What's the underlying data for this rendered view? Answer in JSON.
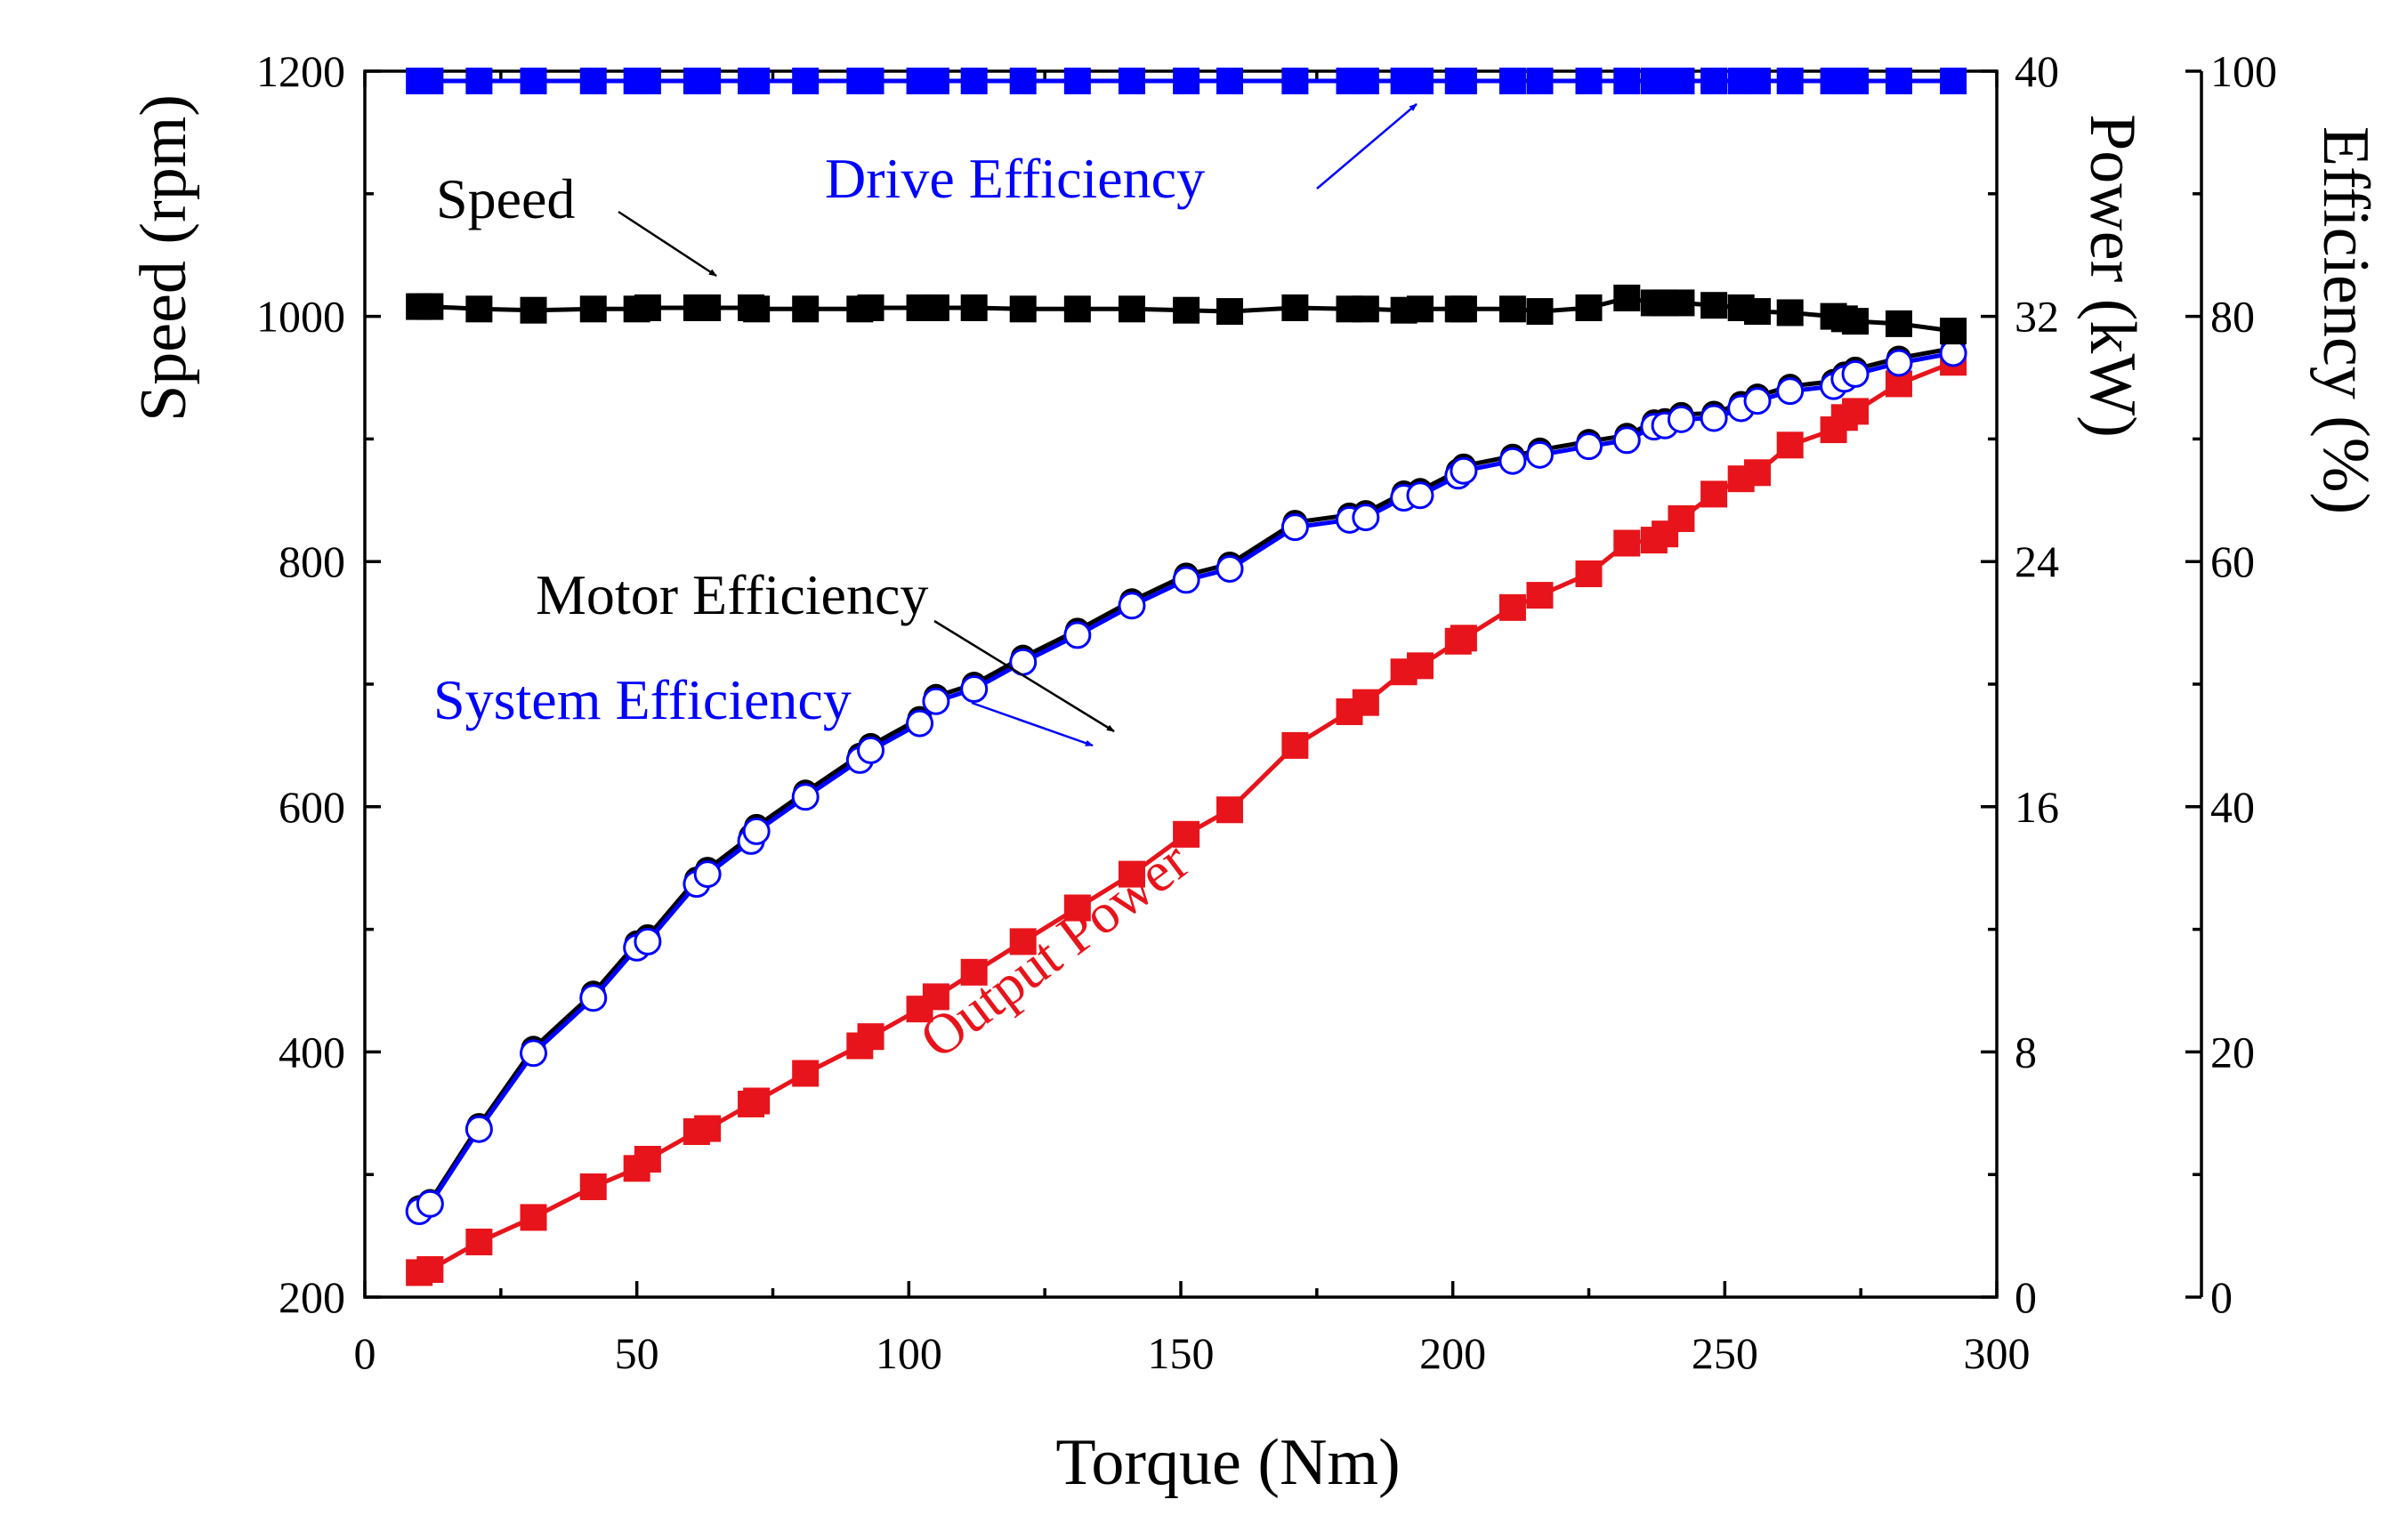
{
  "chart_data": {
    "type": "line",
    "xlabel": "Torque (Nm)",
    "xlim": [
      0,
      300
    ],
    "xticks": [
      "0",
      "50",
      "100",
      "150",
      "200",
      "250",
      "300"
    ],
    "axes": {
      "speed": {
        "label": "Speed (rpm)",
        "lim": [
          200,
          1200
        ],
        "ticks": [
          "200",
          "400",
          "600",
          "800",
          "1000",
          "1200"
        ]
      },
      "power": {
        "label": "Power (kW)",
        "lim": [
          0,
          40
        ],
        "ticks": [
          "0",
          "8",
          "16",
          "24",
          "32",
          "40"
        ]
      },
      "efficiency": {
        "label": "Efficiency (%)",
        "lim": [
          0,
          100
        ],
        "ticks": [
          "0",
          "20",
          "40",
          "60",
          "80",
          "100"
        ]
      }
    },
    "x": [
      10,
      12,
      21,
      31,
      42,
      50,
      52,
      61,
      63,
      71,
      72,
      81,
      91,
      93,
      102,
      105,
      112,
      121,
      131,
      141,
      151,
      159,
      171,
      181,
      184,
      191,
      194,
      201,
      202,
      211,
      216,
      225,
      232,
      237,
      239,
      242,
      248,
      253,
      256,
      262,
      270,
      272,
      274,
      282,
      292
    ],
    "series": [
      {
        "name": "Speed",
        "axis": "speed",
        "color": "#000000",
        "marker": "square",
        "values": [
          1008,
          1008,
          1006,
          1005,
          1006,
          1006,
          1007,
          1007,
          1007,
          1007,
          1006,
          1006,
          1006,
          1007,
          1007,
          1007,
          1007,
          1006,
          1006,
          1006,
          1005,
          1004,
          1007,
          1006,
          1006,
          1005,
          1006,
          1006,
          1006,
          1006,
          1004,
          1007,
          1015,
          1011,
          1011,
          1011,
          1009,
          1007,
          1004,
          1003,
          1000,
          998,
          996,
          994,
          988
        ]
      },
      {
        "name": "Output Power",
        "axis": "power",
        "color": "#e8141b",
        "marker": "square",
        "values": [
          0.8,
          0.9,
          1.8,
          2.6,
          3.6,
          4.2,
          4.5,
          5.4,
          5.5,
          6.3,
          6.4,
          7.3,
          8.2,
          8.5,
          9.4,
          9.8,
          10.6,
          11.6,
          12.7,
          13.8,
          15.1,
          15.9,
          18.0,
          19.1,
          19.4,
          20.4,
          20.6,
          21.4,
          21.5,
          22.5,
          22.9,
          23.6,
          24.6,
          24.7,
          24.9,
          25.4,
          26.2,
          26.7,
          26.9,
          27.8,
          28.3,
          28.7,
          28.9,
          29.8,
          30.5
        ]
      },
      {
        "name": "Motor Efficiency",
        "axis": "efficiency",
        "color": "#000000",
        "marker": "circle",
        "values": [
          7.3,
          7.8,
          14.0,
          20.3,
          24.8,
          28.9,
          29.4,
          34.1,
          34.9,
          37.6,
          38.4,
          41.2,
          44.2,
          45.0,
          47.2,
          49.0,
          50.0,
          52.2,
          54.4,
          56.8,
          58.9,
          59.8,
          63.2,
          63.8,
          64.0,
          65.6,
          65.8,
          67.4,
          67.8,
          68.6,
          69.1,
          69.8,
          70.3,
          71.4,
          71.5,
          72.0,
          72.1,
          72.9,
          73.5,
          74.3,
          74.7,
          75.3,
          75.7,
          76.6,
          77.4
        ]
      },
      {
        "name": "System Efficiency",
        "axis": "efficiency",
        "color": "#0000ff",
        "marker": "open-circle",
        "values": [
          7.0,
          7.6,
          13.7,
          19.9,
          24.4,
          28.5,
          29.0,
          33.7,
          34.5,
          37.2,
          38.0,
          40.8,
          43.8,
          44.6,
          46.8,
          48.6,
          49.6,
          51.8,
          54.0,
          56.4,
          58.5,
          59.4,
          62.8,
          63.4,
          63.6,
          65.2,
          65.4,
          67.0,
          67.4,
          68.2,
          68.7,
          69.4,
          69.9,
          71.0,
          71.1,
          71.6,
          71.7,
          72.5,
          73.1,
          73.9,
          74.3,
          74.9,
          75.3,
          76.2,
          77.0
        ]
      },
      {
        "name": "Drive Efficiency",
        "axis": "efficiency",
        "color": "#0000ff",
        "marker": "square",
        "values": [
          99.2,
          99.2,
          99.2,
          99.2,
          99.2,
          99.2,
          99.2,
          99.2,
          99.2,
          99.2,
          99.2,
          99.2,
          99.2,
          99.2,
          99.2,
          99.2,
          99.2,
          99.2,
          99.2,
          99.2,
          99.2,
          99.2,
          99.2,
          99.2,
          99.2,
          99.2,
          99.2,
          99.2,
          99.2,
          99.2,
          99.2,
          99.2,
          99.2,
          99.2,
          99.2,
          99.2,
          99.2,
          99.2,
          99.2,
          99.2,
          99.2,
          99.2,
          99.2,
          99.2,
          99.2
        ]
      }
    ],
    "annotations": [
      {
        "text": "Drive Efficiency",
        "color": "#0000ff"
      },
      {
        "text": "Speed",
        "color": "#000000"
      },
      {
        "text": "Motor Efficiency",
        "color": "#000000"
      },
      {
        "text": "System Efficiency",
        "color": "#0000ff"
      },
      {
        "text": "Output Power",
        "color": "#e8141b"
      }
    ]
  }
}
